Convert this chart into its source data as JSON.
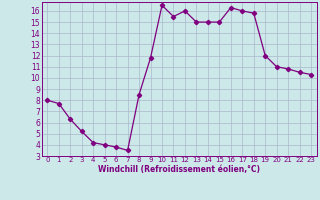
{
  "x": [
    0,
    1,
    2,
    3,
    4,
    5,
    6,
    7,
    8,
    9,
    10,
    11,
    12,
    13,
    14,
    15,
    16,
    17,
    18,
    19,
    20,
    21,
    22,
    23
  ],
  "y": [
    8.0,
    7.7,
    6.3,
    5.2,
    4.2,
    4.0,
    3.8,
    3.5,
    8.5,
    11.8,
    16.5,
    15.5,
    16.0,
    15.0,
    15.0,
    15.0,
    16.3,
    16.0,
    15.8,
    12.0,
    11.0,
    10.8,
    10.5,
    10.3
  ],
  "color": "#800080",
  "bg_color": "#cce8e8",
  "grid_color": "#aab8cc",
  "xlabel": "Windchill (Refroidissement éolien,°C)",
  "ylim": [
    3,
    16.8
  ],
  "xlim": [
    -0.5,
    23.5
  ],
  "yticks": [
    3,
    4,
    5,
    6,
    7,
    8,
    9,
    10,
    11,
    12,
    13,
    14,
    15,
    16
  ],
  "xticks": [
    0,
    1,
    2,
    3,
    4,
    5,
    6,
    7,
    8,
    9,
    10,
    11,
    12,
    13,
    14,
    15,
    16,
    17,
    18,
    19,
    20,
    21,
    22,
    23
  ],
  "marker": "D",
  "markersize": 2.2,
  "linewidth": 0.9
}
